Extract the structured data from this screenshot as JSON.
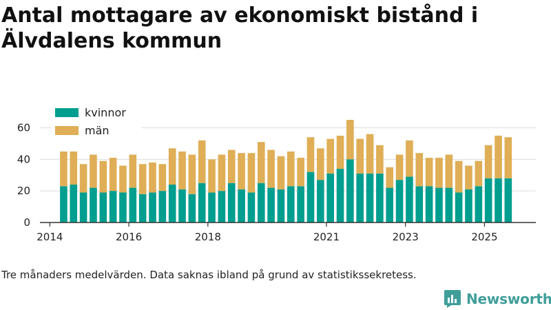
{
  "chart_data": {
    "type": "bar",
    "stacked": true,
    "title": "Antal mottagare av ekonomiskt bistånd i Älvdalens kommun",
    "xlabel": "",
    "ylabel": "",
    "ylim": [
      0,
      72
    ],
    "yticks": [
      0,
      20,
      40,
      60
    ],
    "xticks": [
      {
        "label": "2014",
        "x": 2014.0
      },
      {
        "label": "2016",
        "x": 2016.0
      },
      {
        "label": "2018",
        "x": 2018.0
      },
      {
        "label": "2021",
        "x": 2021.0
      },
      {
        "label": "2023",
        "x": 2023.0
      },
      {
        "label": "2025",
        "x": 2025.0
      }
    ],
    "xlim": [
      2013.75,
      2026.3
    ],
    "legend_position": "top-left",
    "series": [
      {
        "name": "kvinnor",
        "color": "#009e8f",
        "values": [
          23,
          24,
          19,
          22,
          19,
          20,
          19,
          22,
          18,
          19,
          20,
          24,
          21,
          18,
          25,
          19,
          20,
          25,
          21,
          19,
          25,
          22,
          21,
          23,
          23,
          32,
          27,
          31,
          34,
          40,
          31,
          31,
          31,
          22,
          27,
          29,
          23,
          23,
          22,
          22,
          19,
          21,
          23,
          28,
          28,
          28
        ]
      },
      {
        "name": "män",
        "color": "#dfae56",
        "values": [
          22,
          21,
          18,
          21,
          20,
          21,
          17,
          21,
          19,
          19,
          17,
          23,
          24,
          25,
          27,
          21,
          23,
          21,
          23,
          25,
          26,
          24,
          21,
          22,
          18,
          22,
          20,
          22,
          21,
          25,
          22,
          25,
          18,
          13,
          16,
          23,
          21,
          18,
          19,
          21,
          20,
          15,
          16,
          21,
          27,
          26
        ]
      }
    ],
    "x": [
      2014.35,
      2014.6,
      2014.85,
      2015.1,
      2015.35,
      2015.6,
      2015.85,
      2016.1,
      2016.35,
      2016.6,
      2016.85,
      2017.1,
      2017.35,
      2017.6,
      2017.85,
      2018.1,
      2018.35,
      2018.6,
      2018.85,
      2019.1,
      2019.35,
      2019.6,
      2019.85,
      2020.1,
      2020.35,
      2020.6,
      2020.85,
      2021.1,
      2021.35,
      2021.6,
      2021.85,
      2022.1,
      2022.35,
      2022.6,
      2022.85,
      2023.1,
      2023.35,
      2023.6,
      2023.85,
      2024.1,
      2024.35,
      2024.6,
      2024.85,
      2025.1,
      2025.35,
      2025.6
    ]
  },
  "caption": "Tre månaders medelvärden. Data saknas ibland på grund av statistikssekretess.",
  "brand": {
    "name": "Newsworthy",
    "logo_icon": "bar-chart-bubble-icon",
    "color": "#3f9e9a"
  }
}
